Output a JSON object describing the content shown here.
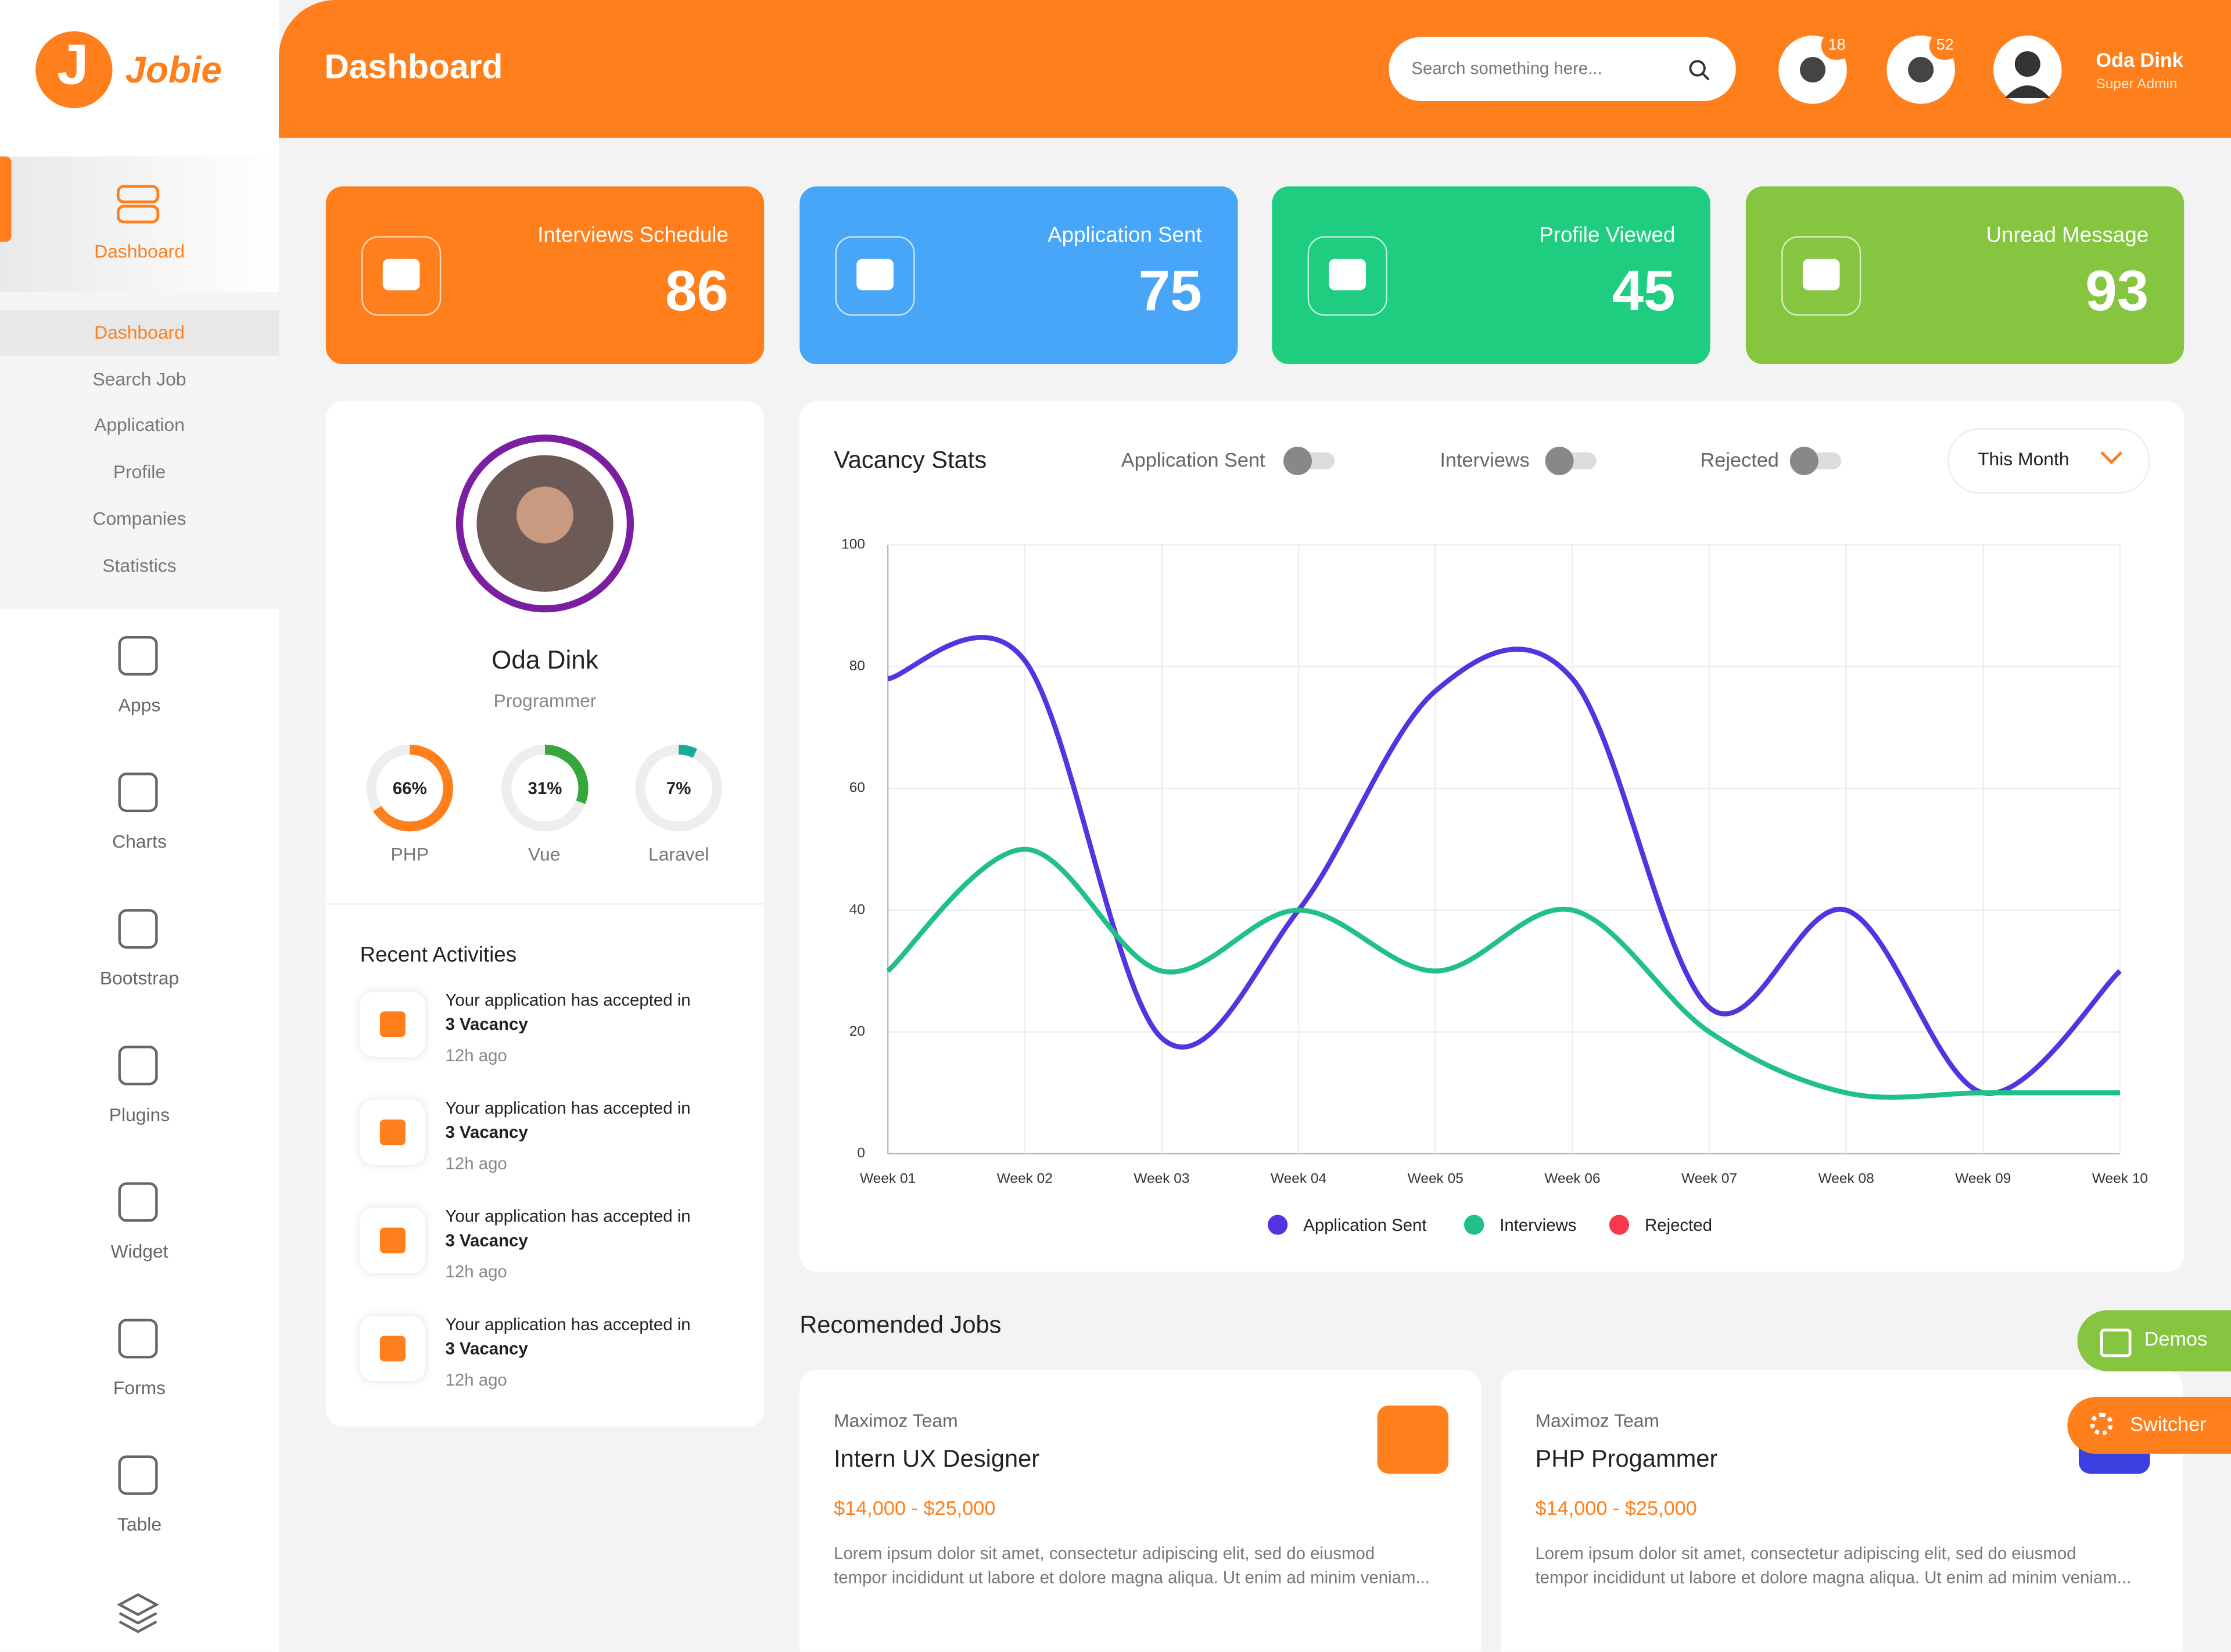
{
  "brand": "Jobie",
  "header": {
    "title": "Dashboard",
    "search_placeholder": "Search something here...",
    "messages_count": 18,
    "notifications_count": 52,
    "user_name": "Oda Dink",
    "user_role": "Super Admin"
  },
  "sidebar": {
    "active": "Dashboard",
    "submenu": [
      "Dashboard",
      "Search Job",
      "Application",
      "Profile",
      "Companies",
      "Statistics"
    ],
    "menu": [
      "Apps",
      "Charts",
      "Bootstrap",
      "Plugins",
      "Widget",
      "Forms",
      "Table"
    ]
  },
  "stats": [
    {
      "label": "Interviews Schedule",
      "value": 86,
      "color": "#fe7f1c"
    },
    {
      "label": "Application Sent",
      "value": 75,
      "color": "#47a6f8"
    },
    {
      "label": "Profile Viewed",
      "value": 45,
      "color": "#1ecd80"
    },
    {
      "label": "Unread Message",
      "value": 93,
      "color": "#85c540"
    }
  ],
  "profile": {
    "name": "Oda Dink",
    "role": "Programmer",
    "skills": {
      "names": [
        "PHP",
        "Vue",
        "Laravel"
      ],
      "values": [
        66,
        31,
        7
      ],
      "value_labels": [
        "66%",
        "31%",
        "7%"
      ],
      "colors": [
        "#fe7f1c",
        "#37a63b",
        "#1aa89a"
      ]
    }
  },
  "recent_activities": {
    "title": "Recent Activities",
    "items": [
      {
        "text": "Your application has accepted in",
        "highlight": "3 Vacancy",
        "time": "12h ago"
      },
      {
        "text": "Your application has accepted in",
        "highlight": "3 Vacancy",
        "time": "12h ago"
      },
      {
        "text": "Your application has accepted in",
        "highlight": "3 Vacancy",
        "time": "12h ago"
      },
      {
        "text": "Your application has accepted in",
        "highlight": "3 Vacancy",
        "time": "12h ago"
      }
    ]
  },
  "vacancy_stats": {
    "type": "line",
    "title": "Vacancy Stats",
    "toggles": [
      "Application Sent",
      "Interviews",
      "Rejected"
    ],
    "period": "This Month",
    "categories": [
      "Week 01",
      "Week 02",
      "Week 03",
      "Week 04",
      "Week 05",
      "Week 06",
      "Week 07",
      "Week 08",
      "Week 09",
      "Week 10"
    ],
    "series": [
      {
        "name": "Application Sent",
        "color": "#5433e0",
        "values": [
          78,
          81,
          19,
          40,
          76,
          78,
          24,
          40,
          10,
          30
        ]
      },
      {
        "name": "Interviews",
        "color": "#21c08a",
        "values": [
          30,
          50,
          30,
          40,
          30,
          40,
          20,
          10,
          10,
          10
        ]
      }
    ],
    "legend_only": {
      "name": "Rejected",
      "color": "#f73a4b"
    },
    "ylim": [
      0,
      100
    ],
    "yticks": [
      0,
      20,
      40,
      60,
      80,
      100
    ],
    "grid": true
  },
  "recommended_jobs": {
    "title": "Recomended Jobs",
    "items": [
      {
        "company": "Maximoz Team",
        "title": "Intern UX Designer",
        "salary": "$14,000 - $25,000",
        "description": "Lorem ipsum dolor sit amet, consectetur adipiscing elit, sed do eiusmod tempor incididunt ut labore et dolore magna aliqua. Ut enim ad minim veniam..."
      },
      {
        "company": "Maximoz Team",
        "title": "PHP Progammer",
        "salary": "$14,000 - $25,000",
        "description": "Lorem ipsum dolor sit amet, consectetur adipiscing elit, sed do eiusmod tempor incididunt ut labore et dolore magna aliqua. Ut enim ad minim veniam..."
      }
    ]
  },
  "floating": [
    "Demos",
    "Switcher"
  ]
}
